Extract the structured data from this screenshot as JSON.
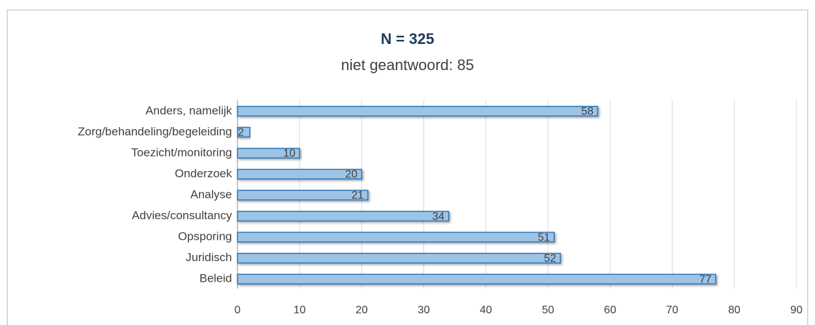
{
  "chart_data": {
    "type": "bar",
    "orientation": "horizontal",
    "title": "N = 325",
    "subtitle": "niet geantwoord: 85",
    "categories": [
      "Anders, namelijk",
      "Zorg/behandeling/begeleiding",
      "Toezicht/monitoring",
      "Onderzoek",
      "Analyse",
      "Advies/consultancy",
      "Opsporing",
      "Juridisch",
      "Beleid"
    ],
    "values": [
      58,
      2,
      10,
      20,
      21,
      34,
      51,
      52,
      77
    ],
    "color": "#9dc3e6",
    "edge_color": "#2e75b6",
    "xlim": [
      0,
      90
    ],
    "xticks": [
      0,
      10,
      20,
      30,
      40,
      50,
      60,
      70,
      80,
      90
    ],
    "grid": true
  }
}
